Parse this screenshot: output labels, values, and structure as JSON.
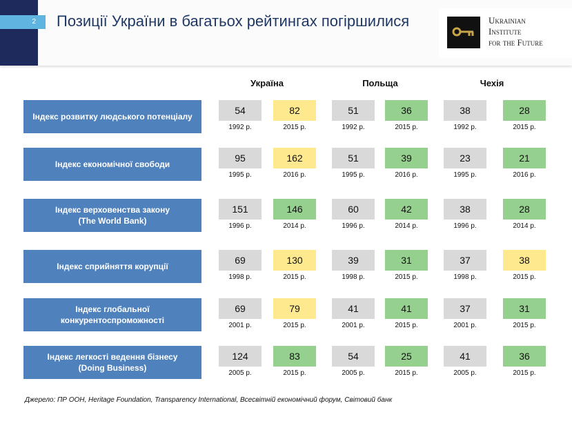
{
  "header": {
    "page_number": "2",
    "title": "Позиції України в багатьох рейтингах погіршилися",
    "logo_lines": [
      "Ukrainian",
      "Institute",
      "for the Future"
    ]
  },
  "table": {
    "columns": [
      "Україна",
      "Польща",
      "Чехія"
    ],
    "rows": [
      {
        "label": [
          "Індекс розвитку людського потенціалу"
        ],
        "cells": [
          {
            "value": 54,
            "year": "1992 р.",
            "color": "#d9d9d9"
          },
          {
            "value": 82,
            "year": "2015 р.",
            "color": "#ffe98f"
          },
          {
            "value": 51,
            "year": "1992 р.",
            "color": "#d9d9d9"
          },
          {
            "value": 36,
            "year": "2015 р.",
            "color": "#95d08e"
          },
          {
            "value": 38,
            "year": "1992 р.",
            "color": "#d9d9d9"
          },
          {
            "value": 28,
            "year": "2015 р.",
            "color": "#95d08e"
          }
        ]
      },
      {
        "label": [
          "Індекс економічної свободи"
        ],
        "cells": [
          {
            "value": 95,
            "year": "1995 р.",
            "color": "#d9d9d9"
          },
          {
            "value": 162,
            "year": "2016 р.",
            "color": "#ffe98f"
          },
          {
            "value": 51,
            "year": "1995 р.",
            "color": "#d9d9d9"
          },
          {
            "value": 39,
            "year": "2016 р.",
            "color": "#95d08e"
          },
          {
            "value": 23,
            "year": "1995 р.",
            "color": "#d9d9d9"
          },
          {
            "value": 21,
            "year": "2016 р.",
            "color": "#95d08e"
          }
        ]
      },
      {
        "label": [
          "Індекс верховенства закону",
          "(The World Bank)"
        ],
        "cells": [
          {
            "value": 151,
            "year": "1996 р.",
            "color": "#d9d9d9"
          },
          {
            "value": 146,
            "year": "2014 р.",
            "color": "#95d08e"
          },
          {
            "value": 60,
            "year": "1996 р.",
            "color": "#d9d9d9"
          },
          {
            "value": 42,
            "year": "2014 р.",
            "color": "#95d08e"
          },
          {
            "value": 38,
            "year": "1996 р.",
            "color": "#d9d9d9"
          },
          {
            "value": 28,
            "year": "2014 р.",
            "color": "#95d08e"
          }
        ]
      },
      {
        "label": [
          "Індекс сприйняття корупції"
        ],
        "cells": [
          {
            "value": 69,
            "year": "1998 р.",
            "color": "#d9d9d9"
          },
          {
            "value": 130,
            "year": "2015 р.",
            "color": "#ffe98f"
          },
          {
            "value": 39,
            "year": "1998 р.",
            "color": "#d9d9d9"
          },
          {
            "value": 31,
            "year": "2015 р.",
            "color": "#95d08e"
          },
          {
            "value": 37,
            "year": "1998 р.",
            "color": "#d9d9d9"
          },
          {
            "value": 38,
            "year": "2015 р.",
            "color": "#ffe98f"
          }
        ]
      },
      {
        "label": [
          "Індекс глобальної",
          "конкурентоспроможності"
        ],
        "cells": [
          {
            "value": 69,
            "year": "2001 р.",
            "color": "#d9d9d9"
          },
          {
            "value": 79,
            "year": "2015 р.",
            "color": "#ffe98f"
          },
          {
            "value": 41,
            "year": "2001 р.",
            "color": "#d9d9d9"
          },
          {
            "value": 41,
            "year": "2015 р.",
            "color": "#95d08e"
          },
          {
            "value": 37,
            "year": "2001 р.",
            "color": "#d9d9d9"
          },
          {
            "value": 31,
            "year": "2015 р.",
            "color": "#95d08e"
          }
        ]
      },
      {
        "label": [
          "Індекс легкості ведення бізнесу",
          "(Doing Business)"
        ],
        "cells": [
          {
            "value": 124,
            "year": "2005 р.",
            "color": "#d9d9d9"
          },
          {
            "value": 83,
            "year": "2015 р.",
            "color": "#95d08e"
          },
          {
            "value": 54,
            "year": "2005 р.",
            "color": "#d9d9d9"
          },
          {
            "value": 25,
            "year": "2015 р.",
            "color": "#95d08e"
          },
          {
            "value": 41,
            "year": "2005 р.",
            "color": "#d9d9d9"
          },
          {
            "value": 36,
            "year": "2015 р.",
            "color": "#95d08e"
          }
        ]
      }
    ]
  },
  "footer": {
    "source": "Джерело: ПР ООН, Heritage Foundation, Transparency International, Всесвітній економічний форум,  Світовий банк"
  }
}
